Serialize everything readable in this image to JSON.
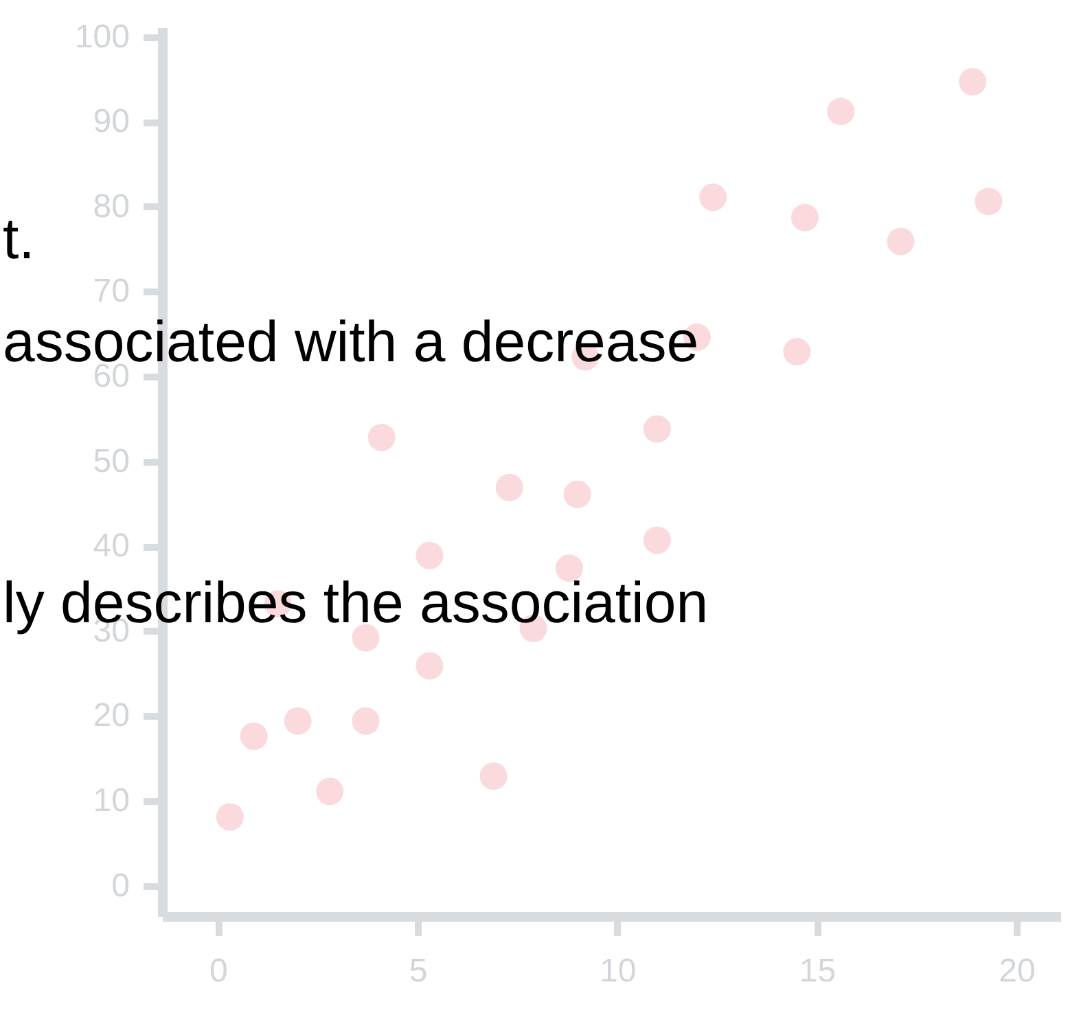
{
  "chart_data": {
    "type": "scatter",
    "x": [
      0.3,
      0.9,
      2.0,
      2.8,
      3.7,
      3.7,
      4.1,
      5.3,
      5.3,
      1.5,
      6.9,
      7.3,
      7.9,
      8.8,
      9.0,
      9.2,
      11.0,
      11.0,
      12.0,
      12.4,
      14.5,
      14.7,
      15.6,
      17.1,
      18.9,
      19.3
    ],
    "values": [
      8.1,
      17.6,
      19.4,
      11.1,
      19.4,
      29.2,
      52.8,
      25.9,
      38.9,
      33.2,
      12.9,
      46.9,
      30.3,
      37.4,
      46.1,
      62.3,
      40.7,
      53.8,
      64.6,
      81.1,
      62.9,
      78.7,
      91.2,
      75.9,
      94.7,
      80.6
    ],
    "color": "#fadadd",
    "marker": "circle",
    "grid": false,
    "xlim": [
      -1.4,
      21.1
    ],
    "ylim": [
      -3.6,
      101.1
    ],
    "xticks": [
      0,
      5,
      10,
      15,
      20
    ],
    "yticks": [
      0,
      10,
      20,
      30,
      40,
      50,
      60,
      70,
      80,
      90,
      100
    ],
    "annotations": [
      "t.",
      "associated with a decrease",
      "ly describes the association"
    ]
  }
}
